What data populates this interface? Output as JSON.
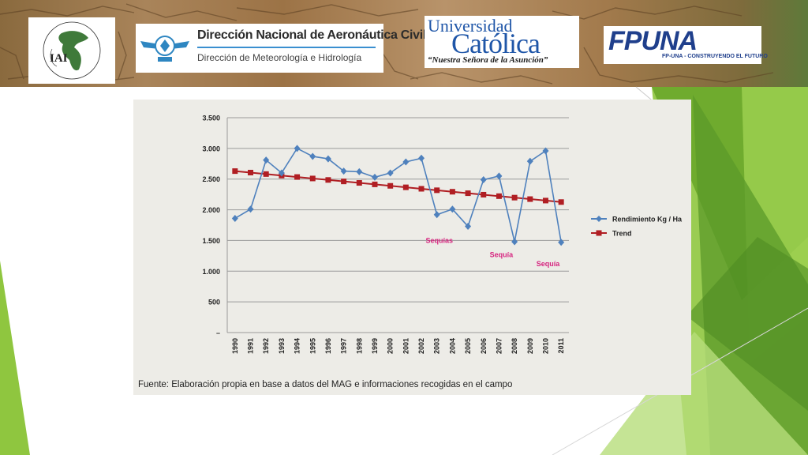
{
  "header": {
    "iai_logo": {
      "text": "IAI"
    },
    "dinac_logo": {
      "title": "Dirección Nacional de Aeronáutica Civil",
      "subtitle": "Dirección de Meteorología e Hidrología"
    },
    "uc_logo": {
      "top": "Universidad",
      "main": "Católica",
      "bottom": "“Nuestra Señora de la Asunción”"
    },
    "fpuna_logo": {
      "text": "FPUNA",
      "tagline": "FP-UNA - CONSTRUYENDO EL FUTURO"
    }
  },
  "colors": {
    "yield_series": "#4f81bd",
    "trend_series": "#b01e23",
    "annotation": "#d6247f",
    "grid": "#9a9a9a",
    "green_dark": "#5b9a2a",
    "green_light": "#8fc63f"
  },
  "chart_data": {
    "type": "line",
    "title": "",
    "xlabel": "",
    "ylabel": "",
    "ylim": [
      0,
      3500
    ],
    "y_ticks": [
      "–",
      "500",
      "1.000",
      "1.500",
      "2.000",
      "2.500",
      "3.000",
      "3.500"
    ],
    "y_tick_values": [
      0,
      500,
      1000,
      1500,
      2000,
      2500,
      3000,
      3500
    ],
    "grid": true,
    "legend_position": "right",
    "x": [
      "1990",
      "1991",
      "1992",
      "1993",
      "1994",
      "1995",
      "1996",
      "1997",
      "1998",
      "1999",
      "2000",
      "2001",
      "2002",
      "2003",
      "2004",
      "2005",
      "2006",
      "2007",
      "2008",
      "2009",
      "2010",
      "2011"
    ],
    "series": [
      {
        "name": "Rendimiento Kg / Ha",
        "values": [
          1860,
          2010,
          2810,
          2600,
          3000,
          2870,
          2830,
          2630,
          2620,
          2530,
          2600,
          2780,
          2840,
          1920,
          2010,
          1730,
          2490,
          2550,
          1480,
          2790,
          2960,
          1470
        ]
      },
      {
        "name": "Trend",
        "values": [
          2630,
          2606,
          2582,
          2558,
          2534,
          2510,
          2486,
          2462,
          2438,
          2414,
          2390,
          2366,
          2342,
          2318,
          2294,
          2270,
          2246,
          2222,
          2198,
          2174,
          2150,
          2126
        ]
      }
    ],
    "annotations": [
      {
        "text": "Sequías",
        "x": "2003",
        "y": 1460
      },
      {
        "text": "Sequía",
        "x": "2007",
        "y": 1230
      },
      {
        "text": "Sequía",
        "x": "2010",
        "y": 1080
      }
    ],
    "source": "Fuente: Elaboración propia en base a datos del MAG e informaciones recogidas en el campo"
  }
}
